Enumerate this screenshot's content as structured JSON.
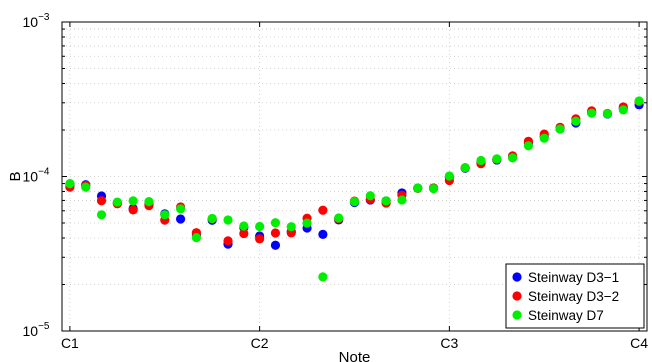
{
  "chart_data": {
    "type": "scatter",
    "xlabel": "Note",
    "ylabel": "B",
    "y_scale": "log",
    "ylim": [
      1e-05,
      0.001
    ],
    "x_ticks": [
      "C1",
      "C2",
      "C3",
      "C4"
    ],
    "y_ticks": [
      {
        "value": 1e-05,
        "base": "10",
        "exp": "−5"
      },
      {
        "value": 0.0001,
        "base": "10",
        "exp": "−4"
      },
      {
        "value": 0.001,
        "base": "10",
        "exp": "−3"
      }
    ],
    "xlim": [
      -0.5,
      36.5
    ],
    "grid": "dotted",
    "legend_position": "bottom-right",
    "series": [
      {
        "name": "Steinway D3−1",
        "color": "#0000ff",
        "x": [
          0,
          1,
          2,
          3,
          4,
          5,
          6,
          7,
          8,
          9,
          10,
          11,
          12,
          13,
          14,
          15,
          16,
          17,
          18,
          19,
          20,
          21,
          22,
          23,
          24,
          25,
          26,
          27,
          28,
          29,
          30,
          31,
          32,
          33,
          34,
          35,
          36
        ],
        "y": [
          8.79e-05,
          8.85e-05,
          7.48e-05,
          6.74e-05,
          6.21e-05,
          6.65e-05,
          5.73e-05,
          5.31e-05,
          4.19e-05,
          5.21e-05,
          3.65e-05,
          4.68e-05,
          4.12e-05,
          3.59e-05,
          4.39e-05,
          4.64e-05,
          4.22e-05,
          5.24e-05,
          6.79e-05,
          7.05e-05,
          6.95e-05,
          7.83e-05,
          8.42e-05,
          8.42e-05,
          9.91e-05,
          0.000113,
          0.000124,
          0.000128,
          0.000134,
          0.000164,
          0.000182,
          0.000203,
          0.000222,
          0.000259,
          0.000254,
          0.000276,
          0.000291
        ]
      },
      {
        "name": "Steinway D3−2",
        "color": "#ff0000",
        "x": [
          0,
          1,
          2,
          3,
          4,
          5,
          6,
          7,
          8,
          9,
          10,
          11,
          12,
          13,
          14,
          15,
          16,
          17,
          18,
          19,
          20,
          21,
          22,
          23,
          24,
          25,
          26,
          27,
          28,
          29,
          30,
          31,
          32,
          33,
          34,
          35,
          36
        ],
        "y": [
          8.53e-05,
          8.74e-05,
          6.97e-05,
          6.66e-05,
          6.08e-05,
          6.48e-05,
          5.22e-05,
          6.35e-05,
          4.33e-05,
          5.32e-05,
          3.83e-05,
          4.28e-05,
          3.95e-05,
          4.31e-05,
          4.32e-05,
          5.37e-05,
          6.05e-05,
          5.33e-05,
          6.93e-05,
          7.11e-05,
          6.73e-05,
          7.56e-05,
          8.38e-05,
          8.42e-05,
          9.42e-05,
          0.000114,
          0.000121,
          0.000129,
          0.000136,
          0.000169,
          0.000188,
          0.000208,
          0.000236,
          0.000266,
          0.000256,
          0.000282,
          0.000305
        ]
      },
      {
        "name": "Steinway D7",
        "color": "#00ee00",
        "x": [
          0,
          1,
          2,
          3,
          4,
          5,
          6,
          7,
          8,
          9,
          10,
          11,
          12,
          13,
          14,
          15,
          16,
          17,
          18,
          19,
          20,
          21,
          22,
          23,
          24,
          25,
          26,
          27,
          28,
          29,
          30,
          31,
          32,
          33,
          34,
          35,
          36
        ],
        "y": [
          8.99e-05,
          8.54e-05,
          5.65e-05,
          6.83e-05,
          6.96e-05,
          6.88e-05,
          5.66e-05,
          6.18e-05,
          4.02e-05,
          5.35e-05,
          5.23e-05,
          4.78e-05,
          4.75e-05,
          5.02e-05,
          4.73e-05,
          4.99e-05,
          2.24e-05,
          5.39e-05,
          6.88e-05,
          7.51e-05,
          6.95e-05,
          7.05e-05,
          8.42e-05,
          8.35e-05,
          0.0001008,
          0.000114,
          0.000127,
          0.00013,
          0.000132,
          0.000158,
          0.000177,
          0.000203,
          0.000228,
          0.000257,
          0.000255,
          0.00027,
          0.000308
        ]
      }
    ]
  }
}
